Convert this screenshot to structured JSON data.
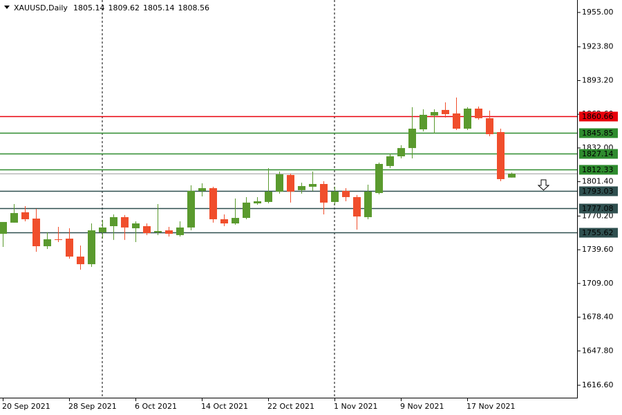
{
  "chart_data": {
    "type": "candlestick",
    "symbol": "XAUUSD,Daily",
    "categories": [
      "20 Sep 2021",
      null,
      null,
      null,
      null,
      null,
      "28 Sep 2021",
      null,
      null,
      null,
      null,
      null,
      "6 Oct 2021",
      null,
      null,
      null,
      null,
      null,
      "14 Oct 2021",
      null,
      null,
      null,
      null,
      null,
      "22 Oct 2021",
      null,
      null,
      null,
      null,
      null,
      "1 Nov 2021",
      null,
      null,
      null,
      null,
      null,
      "9 Nov 2021",
      null,
      null,
      null,
      null,
      null,
      "17 Nov 2021",
      null,
      null,
      null,
      null
    ],
    "open": [
      1754.1,
      1764.2,
      1773.6,
      1767.9,
      1742.8,
      1749.1,
      1749.7,
      1733.4,
      1726.5,
      1755.4,
      1761.0,
      1769.2,
      1759.1,
      1761.0,
      1755.4,
      1757.2,
      1752.9,
      1759.8,
      1793.0,
      1795.5,
      1767.3,
      1763.5,
      1768.5,
      1781.7,
      1783.0,
      1792.4,
      1807.5,
      1793.7,
      1796.8,
      1799.3,
      1783.0,
      1793.0,
      1787.4,
      1769.2,
      1791.1,
      1815.6,
      1824.4,
      1831.9,
      1848.9,
      1861.5,
      1866.5,
      1863.3,
      1849.5,
      1867.7,
      1859.0,
      1846.4,
      1805.14
    ],
    "high": [
      1764.8,
      1781.1,
      1779.2,
      1776.7,
      1755.4,
      1760.4,
      1759.1,
      1743.4,
      1763.5,
      1766.7,
      1771.7,
      1771.1,
      1765.4,
      1763.5,
      1781.1,
      1760.4,
      1765.4,
      1798.1,
      1799.9,
      1796.8,
      1771.7,
      1786.1,
      1787.4,
      1787.4,
      1813.7,
      1810.6,
      1808.7,
      1800.5,
      1810.6,
      1801.8,
      1796.8,
      1795.5,
      1789.3,
      1798.7,
      1818.8,
      1826.9,
      1834.5,
      1869.0,
      1867.1,
      1867.1,
      1873.4,
      1877.8,
      1869.0,
      1869.6,
      1865.9,
      1849.5,
      1809.62
    ],
    "low": [
      1742.2,
      1764.2,
      1765.4,
      1737.8,
      1740.3,
      1746.6,
      1731.5,
      1721.5,
      1724.0,
      1749.7,
      1748.5,
      1748.5,
      1746.6,
      1752.9,
      1752.9,
      1751.6,
      1751.6,
      1757.2,
      1788.0,
      1764.2,
      1761.0,
      1762.3,
      1767.3,
      1780.5,
      1781.7,
      1790.5,
      1782.4,
      1790.5,
      1793.0,
      1771.7,
      1780.5,
      1783.6,
      1757.9,
      1767.3,
      1789.9,
      1813.7,
      1822.5,
      1822.5,
      1847.0,
      1845.1,
      1859.6,
      1848.3,
      1848.3,
      1857.7,
      1842.6,
      1801.8,
      1805.14
    ],
    "close": [
      1764.8,
      1772.9,
      1767.3,
      1742.8,
      1749.1,
      1748.5,
      1733.4,
      1726.5,
      1757.2,
      1759.8,
      1769.2,
      1759.8,
      1763.5,
      1754.7,
      1756.6,
      1754.1,
      1759.8,
      1793.0,
      1795.5,
      1767.3,
      1763.5,
      1768.5,
      1782.4,
      1783.6,
      1792.4,
      1808.1,
      1792.4,
      1797.4,
      1799.3,
      1782.4,
      1792.4,
      1787.4,
      1769.8,
      1792.4,
      1817.5,
      1824.4,
      1831.9,
      1849.5,
      1862.1,
      1864.6,
      1862.7,
      1849.5,
      1867.7,
      1859.0,
      1844.5,
      1803.7,
      1808.56
    ],
    "up_color": "#5a9a2e",
    "down_color": "#f04e2c",
    "levels": [
      {
        "value": 1860.66,
        "color": "#e8000b"
      },
      {
        "value": 1845.85,
        "color": "#2e8b2e"
      },
      {
        "value": 1827.14,
        "color": "#2e8b2e"
      },
      {
        "value": 1812.33,
        "color": "#2e8b2e"
      },
      {
        "value": 1793.03,
        "color": "#2f4f4f"
      },
      {
        "value": 1777.08,
        "color": "#2f4f4f"
      },
      {
        "value": 1755.62,
        "color": "#2f4f4f"
      }
    ],
    "ylim": [
      1605.3,
      1966.3
    ],
    "yticks": [
      {
        "value": 1955,
        "label": "1955.00"
      },
      {
        "value": 1923.8,
        "label": "1923.80"
      },
      {
        "value": 1893.2,
        "label": "1893.20"
      },
      {
        "value": 1862.6,
        "label": "1862.60"
      },
      {
        "value": 1832,
        "label": "1832.00"
      },
      {
        "value": 1801.4,
        "label": "1801.40"
      },
      {
        "value": 1770.2,
        "label": "1770.20"
      },
      {
        "value": 1739.6,
        "label": "1739.60"
      },
      {
        "value": 1709,
        "label": "1709.00"
      },
      {
        "value": 1678.4,
        "label": "1678.40"
      },
      {
        "value": 1647.8,
        "label": "1647.80"
      },
      {
        "value": 1616.6,
        "label": "1616.60"
      }
    ]
  }
}
